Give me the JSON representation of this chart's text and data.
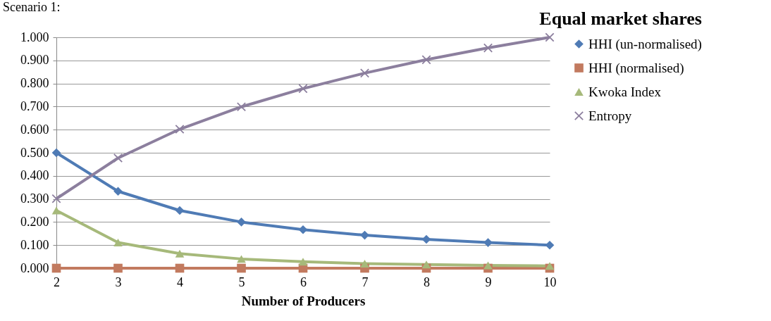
{
  "chart_data": {
    "type": "line",
    "title": "Equal market shares",
    "xlabel": "Number of Producers",
    "annotations": [
      "Scenario 1:"
    ],
    "categories": [
      "2",
      "3",
      "4",
      "5",
      "6",
      "7",
      "8",
      "9",
      "10"
    ],
    "series": [
      {
        "name": "HHI (un-normalised)",
        "color": "#4f7bb5",
        "marker": "diamond",
        "values": [
          0.5,
          0.333,
          0.25,
          0.2,
          0.167,
          0.143,
          0.125,
          0.111,
          0.1
        ]
      },
      {
        "name": "HHI (normalised)",
        "color": "#c27a5f",
        "marker": "square",
        "values": [
          0,
          0,
          0,
          0,
          0,
          0,
          0,
          0,
          0
        ]
      },
      {
        "name": "Kwoka Index",
        "color": "#a6b97a",
        "marker": "triangle",
        "values": [
          0.25,
          0.111,
          0.063,
          0.04,
          0.028,
          0.02,
          0.016,
          0.012,
          0.01
        ]
      },
      {
        "name": "Entropy",
        "color": "#8c7f9e",
        "marker": "cross",
        "values": [
          0.301,
          0.477,
          0.602,
          0.699,
          0.778,
          0.845,
          0.903,
          0.954,
          1.0
        ]
      }
    ],
    "ylim": [
      0,
      1
    ],
    "yticks": [
      {
        "value": 0,
        "label": "0.000"
      },
      {
        "value": 0.1,
        "label": "0.100"
      },
      {
        "value": 0.2,
        "label": "0.200"
      },
      {
        "value": 0.3,
        "label": "0.300"
      },
      {
        "value": 0.4,
        "label": "0.400"
      },
      {
        "value": 0.5,
        "label": "0.500"
      },
      {
        "value": 0.6,
        "label": "0.600"
      },
      {
        "value": 0.7,
        "label": "0.700"
      },
      {
        "value": 0.8,
        "label": "0.800"
      },
      {
        "value": 0.9,
        "label": "0.900"
      },
      {
        "value": 1,
        "label": "1.000"
      }
    ],
    "grid": "y",
    "legend": "right",
    "line_style": "solid"
  }
}
